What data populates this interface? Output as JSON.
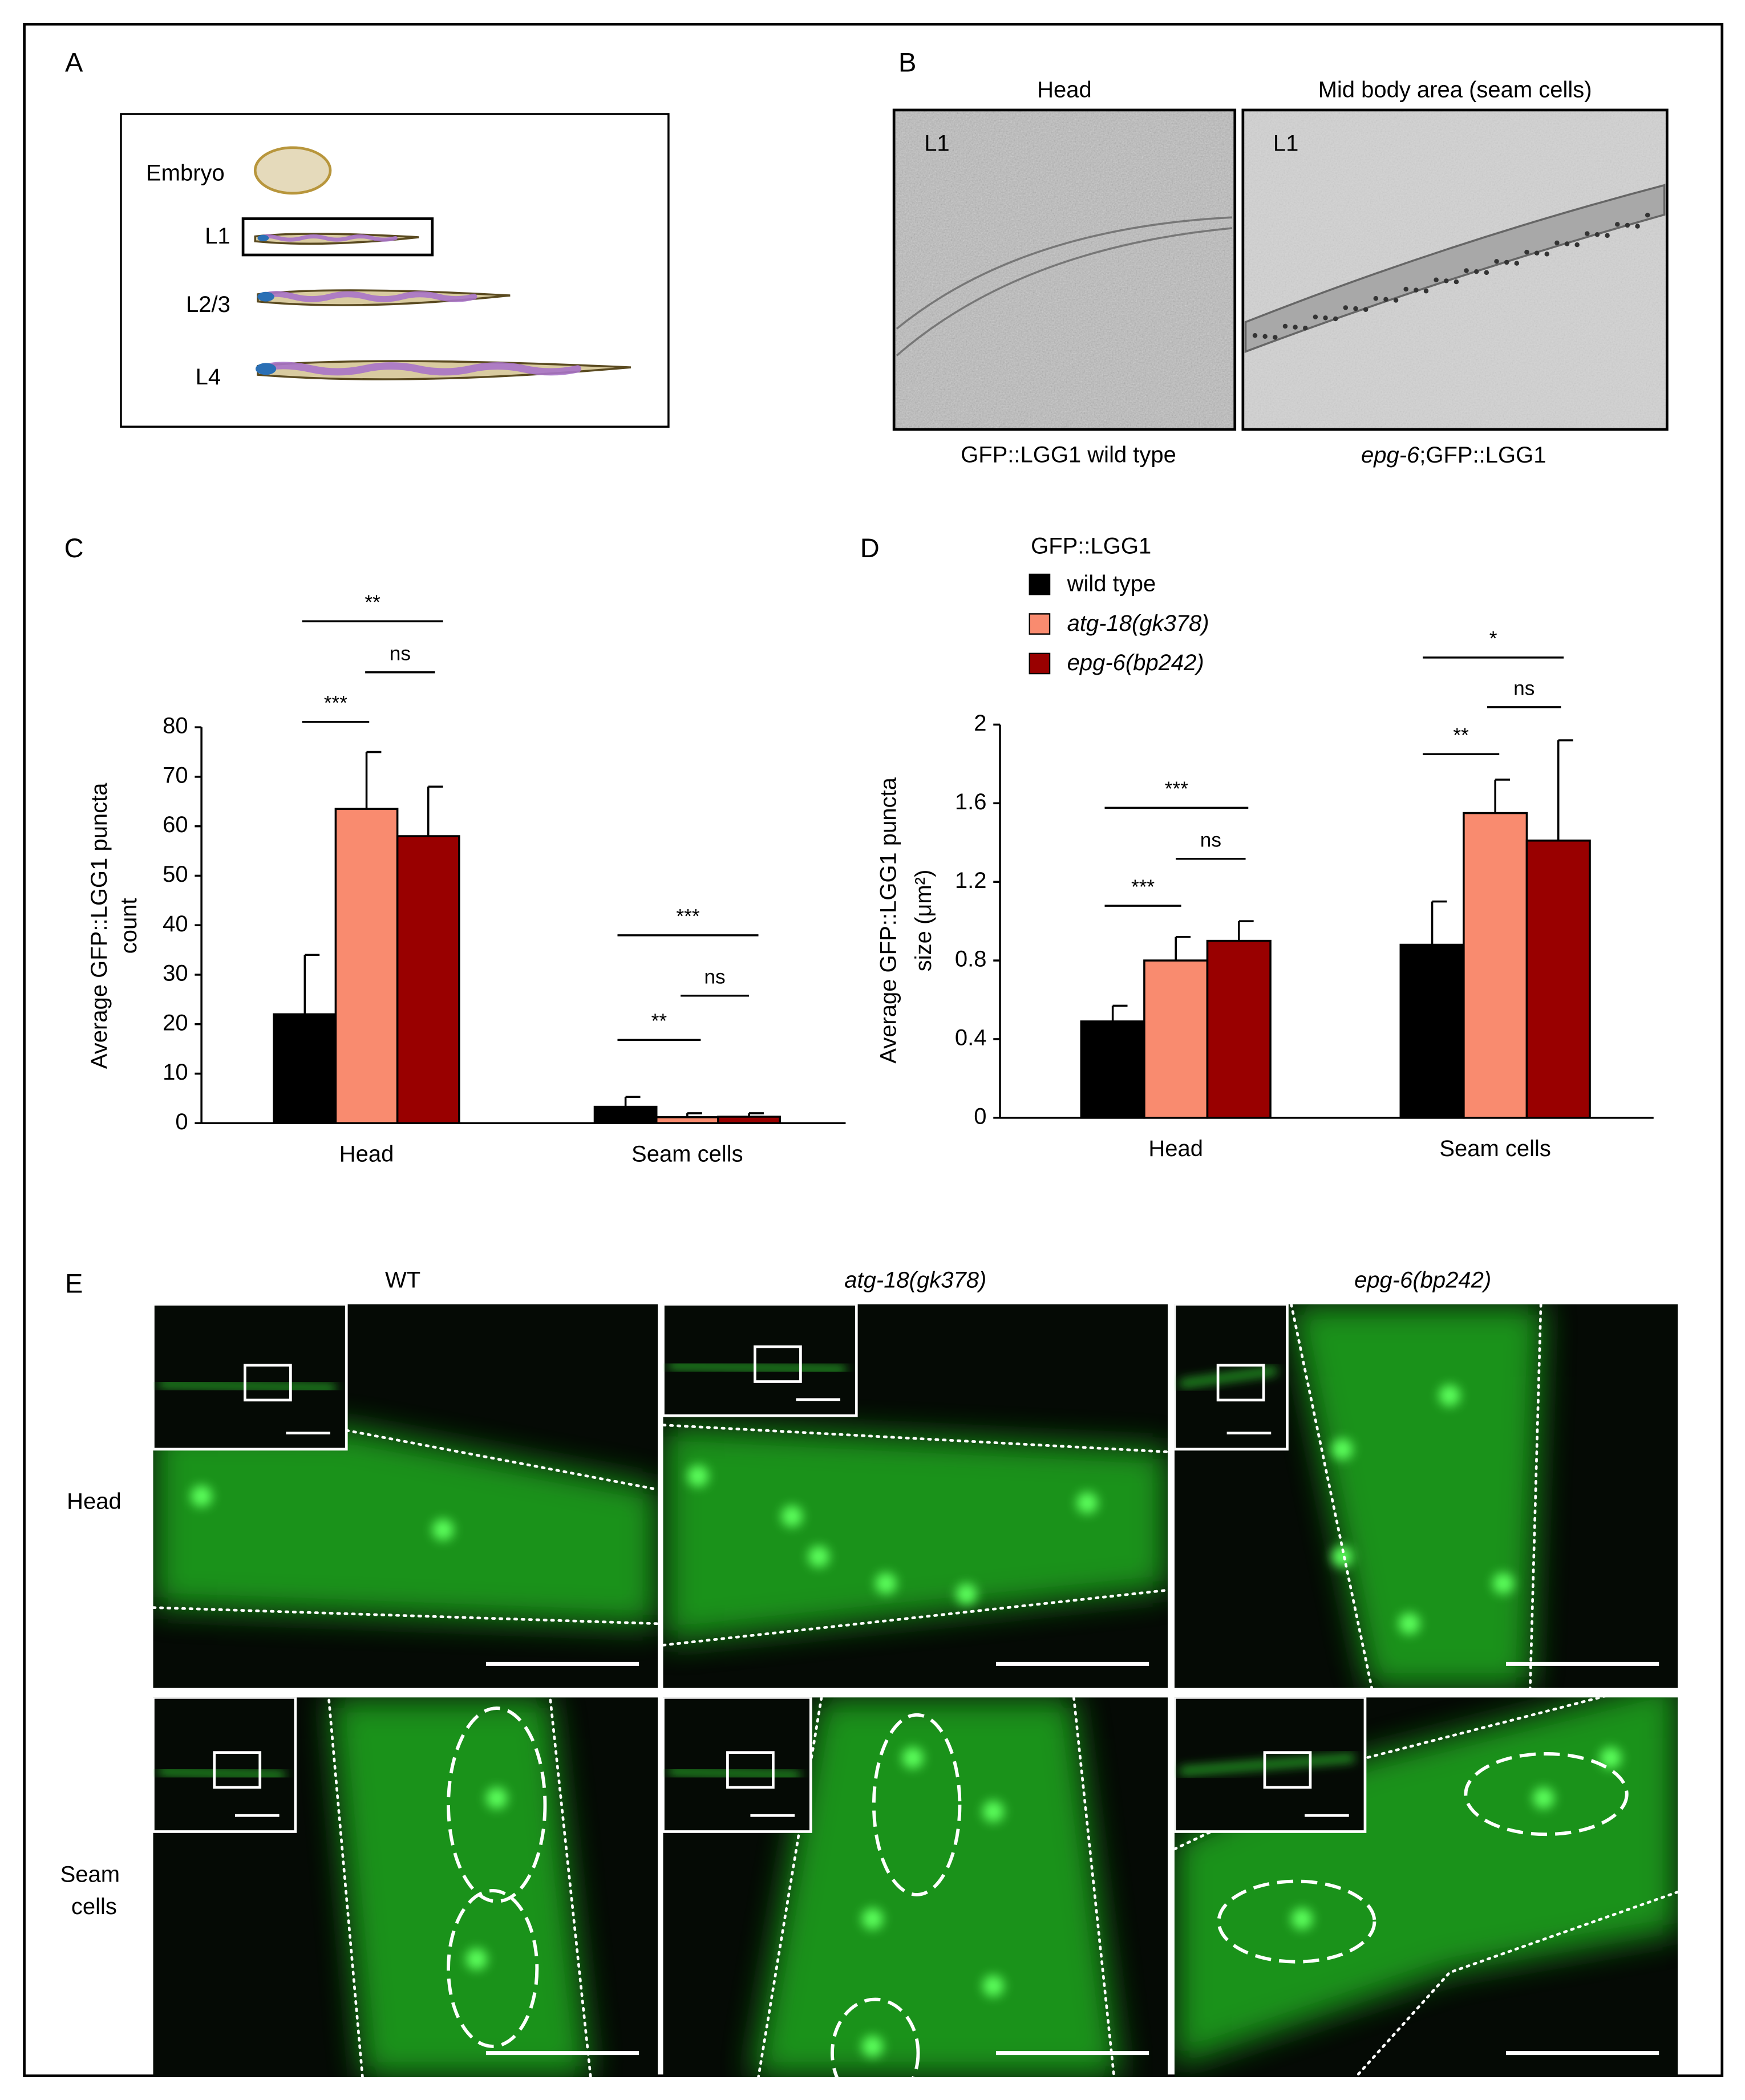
{
  "panels": {
    "A": {
      "label": "A",
      "stages": [
        "Embryo",
        "L1",
        "L2/3",
        "L4"
      ]
    },
    "B": {
      "label": "B",
      "titles": [
        "Head",
        "Mid body area (seam cells)"
      ],
      "stage_labels": [
        "L1",
        "L1"
      ],
      "captions": [
        [
          "GFP::LGG1 wild type"
        ],
        [
          "epg-6",
          ";GFP::LGG1"
        ]
      ]
    },
    "C": {
      "label": "C"
    },
    "D": {
      "label": "D"
    },
    "E": {
      "label": "E",
      "columns": [
        "WT",
        "atg-18(gk378)",
        "epg-6(bp242)"
      ],
      "rows": [
        [
          "Head"
        ],
        [
          "Seam",
          "cells"
        ]
      ]
    }
  },
  "chart_data": [
    {
      "type": "bar",
      "ylabel": [
        "Average GFP::LGG1 puncta",
        "count"
      ],
      "categories": [
        "Head",
        "Seam cells"
      ],
      "series": [
        {
          "color": "#000000",
          "values": [
            22,
            3.3
          ],
          "errors": [
            12,
            2
          ]
        },
        {
          "color": "#f98b6f",
          "values": [
            63.5,
            1.2
          ],
          "errors": [
            11.5,
            0.8
          ]
        },
        {
          "color": "#990000",
          "values": [
            58,
            1.3
          ],
          "errors": [
            10,
            0.7
          ]
        }
      ],
      "ylim": [
        0,
        80
      ],
      "yticks": [
        0,
        10,
        20,
        30,
        40,
        50,
        60,
        70,
        80
      ],
      "annotations": [
        "**",
        "ns",
        "***",
        "***",
        "ns",
        "**"
      ]
    },
    {
      "type": "bar",
      "ylabel": [
        "Average GFP::LGG1 puncta",
        "size (μm²)"
      ],
      "legend_title": "GFP::LGG1",
      "categories": [
        "Head",
        "Seam cells"
      ],
      "series": [
        {
          "name": "wild type",
          "color": "#000000",
          "values": [
            0.49,
            0.88
          ],
          "errors": [
            0.08,
            0.22
          ]
        },
        {
          "name": "atg-18(gk378)",
          "color": "#f98b6f",
          "values": [
            0.8,
            1.55
          ],
          "errors": [
            0.12,
            0.17
          ]
        },
        {
          "name": "epg-6(bp242)",
          "color": "#990000",
          "values": [
            0.9,
            1.41
          ],
          "errors": [
            0.1,
            0.51
          ]
        }
      ],
      "ylim": [
        0,
        2
      ],
      "yticks": [
        0,
        0.4,
        0.8,
        1.2,
        1.6,
        2
      ],
      "annotations": [
        "***",
        "ns",
        "***",
        "*",
        "ns",
        "**"
      ]
    }
  ]
}
